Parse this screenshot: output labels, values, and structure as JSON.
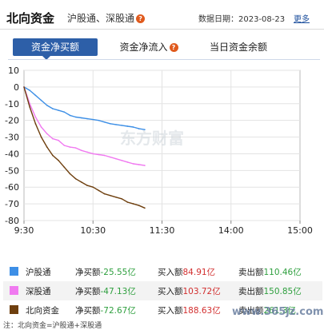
{
  "header": {
    "title": "北向资金",
    "subtitle": "沪股通、深股通",
    "date_label": "数据日期：2023-08-23",
    "more_link": "更多"
  },
  "tabs": [
    {
      "label": "资金净买额",
      "active": true,
      "has_help": false
    },
    {
      "label": "资金净流入",
      "active": false,
      "has_help": true
    },
    {
      "label": "当日资金余额",
      "active": false,
      "has_help": false
    }
  ],
  "legend": [
    {
      "name": "沪股通",
      "net_label": "净买额",
      "net_value": "-25.55亿",
      "buy_label": "买入额",
      "buy_value": "84.91亿",
      "sell_label": "卖出额",
      "sell_value": "110.46亿",
      "color": "#3d8fe6"
    },
    {
      "name": "深股通",
      "net_label": "净买额",
      "net_value": "-47.13亿",
      "buy_label": "买入额",
      "buy_value": "103.72亿",
      "sell_label": "卖出额",
      "sell_value": "150.85亿",
      "color": "#f07af0"
    },
    {
      "name": "北向资金",
      "net_label": "净买额",
      "net_value": "-72.67亿",
      "buy_label": "买入额",
      "buy_value": "188.63亿",
      "sell_label": "卖出额",
      "sell_value": "261.3亿",
      "color": "#6e3f0e"
    }
  ],
  "watermark": "东方财富",
  "site_watermark": "www.365jz.com",
  "footer_note": "注：北向资金=沪股通+深股通",
  "chart_data": {
    "type": "line",
    "title": "",
    "xlabel": "",
    "ylabel": "",
    "x_ticks": [
      "9:30",
      "10:30",
      "11:30",
      "14:00",
      "15:00"
    ],
    "y_ticks": [
      10,
      0,
      -10,
      -20,
      -30,
      -40,
      -50,
      -60,
      -70,
      -80
    ],
    "ylim": [
      -80,
      10
    ],
    "grid": true,
    "series": [
      {
        "name": "沪股通",
        "color": "#3d8fe6",
        "x": [
          "9:30",
          "9:35",
          "9:40",
          "9:45",
          "9:50",
          "9:55",
          "10:00",
          "10:05",
          "10:10",
          "10:15",
          "10:20",
          "10:25",
          "10:30",
          "10:35",
          "10:40",
          "10:45",
          "10:50",
          "10:55",
          "11:00",
          "11:05",
          "11:10",
          "11:15"
        ],
        "values": [
          0,
          -2,
          -5,
          -8,
          -11,
          -13,
          -14,
          -15,
          -17,
          -18,
          -18.5,
          -19,
          -19.5,
          -20,
          -21,
          -22,
          -22.5,
          -23,
          -23.5,
          -24,
          -25,
          -25.5
        ]
      },
      {
        "name": "深股通",
        "color": "#f07af0",
        "x": [
          "9:30",
          "9:35",
          "9:40",
          "9:45",
          "9:50",
          "9:55",
          "10:00",
          "10:05",
          "10:10",
          "10:15",
          "10:20",
          "10:25",
          "10:30",
          "10:35",
          "10:40",
          "10:45",
          "10:50",
          "10:55",
          "11:00",
          "11:05",
          "11:10",
          "11:15"
        ],
        "values": [
          0,
          -10,
          -18,
          -24,
          -28,
          -31,
          -32,
          -35,
          -36,
          -36.5,
          -38,
          -39,
          -40,
          -40.5,
          -41,
          -42,
          -43,
          -44,
          -45,
          -46,
          -46.5,
          -47
        ]
      },
      {
        "name": "北向资金",
        "color": "#6e3f0e",
        "x": [
          "9:30",
          "9:35",
          "9:40",
          "9:45",
          "9:50",
          "9:55",
          "10:00",
          "10:05",
          "10:10",
          "10:15",
          "10:20",
          "10:25",
          "10:30",
          "10:35",
          "10:40",
          "10:45",
          "10:50",
          "10:55",
          "11:00",
          "11:05",
          "11:10",
          "11:15"
        ],
        "values": [
          0,
          -12,
          -22,
          -30,
          -36,
          -41,
          -44,
          -48,
          -52,
          -55,
          -57,
          -59,
          -60,
          -62,
          -64,
          -65,
          -66,
          -67,
          -69,
          -70,
          -71,
          -72.5
        ]
      }
    ]
  }
}
